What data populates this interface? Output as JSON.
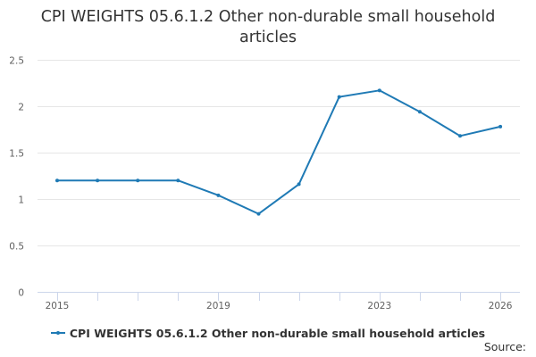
{
  "chart_data": {
    "type": "line",
    "title_lines": [
      "CPI WEIGHTS 05.6.1.2 Other non-durable small household",
      "articles"
    ],
    "x": [
      2015,
      2016,
      2017,
      2018,
      2019,
      2020,
      2021,
      2022,
      2023,
      2024,
      2025,
      2026
    ],
    "x_tick_labels": [
      "2015",
      "2019",
      "2023",
      "2026"
    ],
    "x_tick_values": [
      2015,
      2019,
      2023,
      2026
    ],
    "y_ticks": [
      "0",
      "0.5",
      "1",
      "1.5",
      "2",
      "2.5"
    ],
    "y_tick_values": [
      0,
      0.5,
      1,
      1.5,
      2,
      2.5
    ],
    "ylim": [
      0,
      2.5
    ],
    "grid": "horizontal",
    "legend_position": "bottom-center",
    "series": [
      {
        "name": "CPI WEIGHTS 05.6.1.2 Other non-durable small household articles",
        "color": "#1f7ab5",
        "values": [
          1.2,
          1.2,
          1.2,
          1.2,
          1.04,
          0.84,
          1.16,
          2.1,
          2.17,
          1.94,
          1.68,
          1.78
        ]
      }
    ],
    "credits": "Source:"
  }
}
